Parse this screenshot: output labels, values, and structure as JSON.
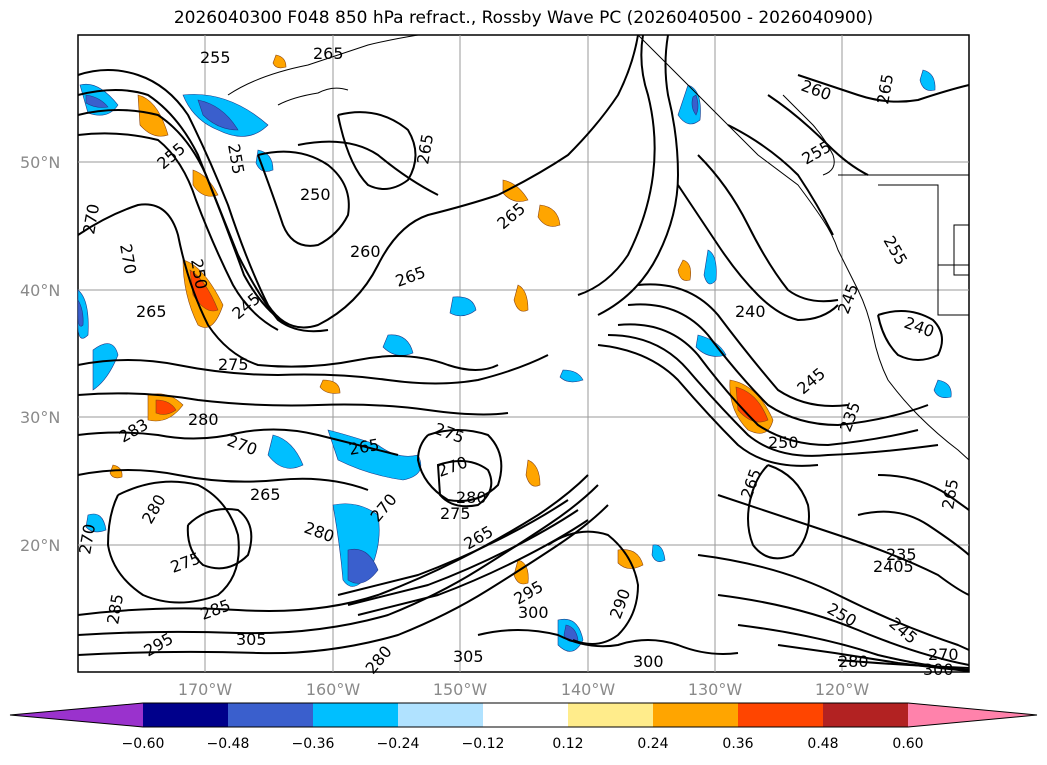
{
  "title": "2026040300 F048 850 hPa refract., Rossby Wave PC (2026040500 - 2026040900)",
  "lat_labels": [
    "50°N",
    "40°N",
    "30°N",
    "20°N"
  ],
  "lon_labels": [
    "170°W",
    "160°W",
    "150°W",
    "140°W",
    "130°W",
    "120°W"
  ],
  "colorbar": {
    "ticks": [
      "−0.60",
      "−0.48",
      "−0.36",
      "−0.24",
      "−0.12",
      "0.12",
      "0.24",
      "0.36",
      "0.48",
      "0.60"
    ],
    "colors": [
      "#9a32cd",
      "#00008b",
      "#3a5fcd",
      "#00bfff",
      "#b0e2ff",
      "#ffffff",
      "#ffec8b",
      "#ffa500",
      "#ff4500",
      "#b22222",
      "#ff82ab"
    ]
  },
  "contour_labels": [
    "255",
    "265",
    "255",
    "265",
    "255",
    "250",
    "260",
    "270",
    "270",
    "250",
    "265",
    "245",
    "275",
    "280",
    "283",
    "270",
    "265",
    "265",
    "275",
    "270",
    "280",
    "275",
    "270",
    "265",
    "280",
    "265",
    "280",
    "275",
    "285",
    "305",
    "295",
    "295",
    "300",
    "305",
    "300",
    "290",
    "265",
    "240",
    "245",
    "250",
    "235",
    "265",
    "260",
    "265",
    "255",
    "255",
    "245",
    "240",
    "235",
    "2405",
    "250",
    "245",
    "270",
    "280",
    "300",
    "265",
    "280",
    "270",
    "285"
  ]
}
